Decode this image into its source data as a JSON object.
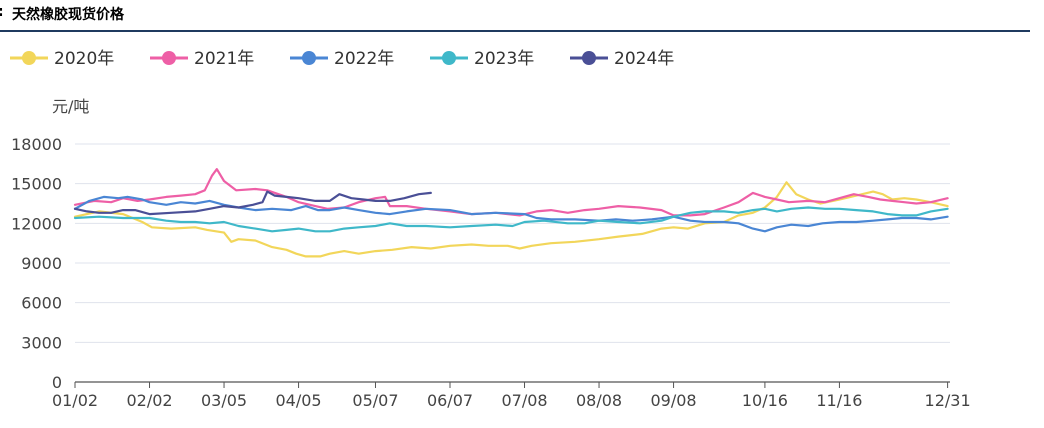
{
  "header": {
    "prefix": ":",
    "title": "天然橡胶现货价格"
  },
  "chart_data": {
    "type": "line",
    "title": "天然橡胶现货价格",
    "ylabel": "元/吨",
    "xlabel": "",
    "ylim": [
      0,
      18000
    ],
    "yticks": [
      0,
      3000,
      6000,
      9000,
      12000,
      15000,
      18000
    ],
    "x_range": [
      0,
      364
    ],
    "xticks": [
      {
        "label": "01/02",
        "day": 0
      },
      {
        "label": "02/02",
        "day": 31
      },
      {
        "label": "03/05",
        "day": 62
      },
      {
        "label": "04/05",
        "day": 93
      },
      {
        "label": "05/07",
        "day": 125
      },
      {
        "label": "06/07",
        "day": 156
      },
      {
        "label": "07/08",
        "day": 187
      },
      {
        "label": "08/08",
        "day": 218
      },
      {
        "label": "09/08",
        "day": 249
      },
      {
        "label": "10/16",
        "day": 287
      },
      {
        "label": "11/16",
        "day": 318
      },
      {
        "label": "12/31",
        "day": 363
      }
    ],
    "legend_position": "top-left",
    "grid": true,
    "series": [
      {
        "name": "2020年",
        "color": "#f2d65a",
        "points": [
          [
            0,
            12500
          ],
          [
            10,
            12900
          ],
          [
            20,
            12700
          ],
          [
            28,
            12100
          ],
          [
            32,
            11700
          ],
          [
            40,
            11600
          ],
          [
            50,
            11700
          ],
          [
            55,
            11500
          ],
          [
            62,
            11300
          ],
          [
            65,
            10600
          ],
          [
            68,
            10800
          ],
          [
            75,
            10700
          ],
          [
            82,
            10200
          ],
          [
            88,
            10000
          ],
          [
            92,
            9700
          ],
          [
            96,
            9500
          ],
          [
            102,
            9500
          ],
          [
            106,
            9700
          ],
          [
            112,
            9900
          ],
          [
            118,
            9700
          ],
          [
            125,
            9900
          ],
          [
            132,
            10000
          ],
          [
            140,
            10200
          ],
          [
            148,
            10100
          ],
          [
            156,
            10300
          ],
          [
            165,
            10400
          ],
          [
            172,
            10300
          ],
          [
            180,
            10300
          ],
          [
            185,
            10100
          ],
          [
            190,
            10300
          ],
          [
            198,
            10500
          ],
          [
            208,
            10600
          ],
          [
            218,
            10800
          ],
          [
            226,
            11000
          ],
          [
            236,
            11200
          ],
          [
            244,
            11600
          ],
          [
            249,
            11700
          ],
          [
            255,
            11600
          ],
          [
            262,
            12000
          ],
          [
            270,
            12100
          ],
          [
            276,
            12600
          ],
          [
            282,
            12800
          ],
          [
            287,
            13200
          ],
          [
            292,
            14000
          ],
          [
            296,
            15100
          ],
          [
            300,
            14200
          ],
          [
            305,
            13800
          ],
          [
            310,
            13500
          ],
          [
            318,
            13800
          ],
          [
            325,
            14100
          ],
          [
            332,
            14400
          ],
          [
            336,
            14200
          ],
          [
            340,
            13800
          ],
          [
            345,
            13900
          ],
          [
            350,
            13800
          ],
          [
            356,
            13600
          ],
          [
            363,
            13300
          ]
        ]
      },
      {
        "name": "2021年",
        "color": "#ee5fa6",
        "points": [
          [
            0,
            13400
          ],
          [
            8,
            13700
          ],
          [
            15,
            13600
          ],
          [
            20,
            13900
          ],
          [
            26,
            13700
          ],
          [
            31,
            13800
          ],
          [
            38,
            14000
          ],
          [
            44,
            14100
          ],
          [
            50,
            14200
          ],
          [
            54,
            14500
          ],
          [
            57,
            15600
          ],
          [
            59,
            16100
          ],
          [
            62,
            15200
          ],
          [
            67,
            14500
          ],
          [
            75,
            14600
          ],
          [
            80,
            14500
          ],
          [
            88,
            14000
          ],
          [
            93,
            13600
          ],
          [
            100,
            13300
          ],
          [
            105,
            13100
          ],
          [
            112,
            13200
          ],
          [
            118,
            13600
          ],
          [
            125,
            13900
          ],
          [
            129,
            14000
          ],
          [
            131,
            13300
          ],
          [
            138,
            13300
          ],
          [
            146,
            13100
          ],
          [
            156,
            12900
          ],
          [
            165,
            12700
          ],
          [
            175,
            12800
          ],
          [
            185,
            12600
          ],
          [
            192,
            12900
          ],
          [
            198,
            13000
          ],
          [
            205,
            12800
          ],
          [
            212,
            13000
          ],
          [
            218,
            13100
          ],
          [
            226,
            13300
          ],
          [
            235,
            13200
          ],
          [
            244,
            13000
          ],
          [
            249,
            12600
          ],
          [
            256,
            12600
          ],
          [
            262,
            12700
          ],
          [
            270,
            13200
          ],
          [
            276,
            13600
          ],
          [
            282,
            14300
          ],
          [
            287,
            14000
          ],
          [
            292,
            13800
          ],
          [
            297,
            13600
          ],
          [
            305,
            13700
          ],
          [
            312,
            13600
          ],
          [
            318,
            13900
          ],
          [
            324,
            14200
          ],
          [
            330,
            14000
          ],
          [
            335,
            13800
          ],
          [
            340,
            13700
          ],
          [
            345,
            13600
          ],
          [
            350,
            13500
          ],
          [
            356,
            13600
          ],
          [
            363,
            13900
          ]
        ]
      },
      {
        "name": "2022年",
        "color": "#4a86d4",
        "points": [
          [
            0,
            13100
          ],
          [
            6,
            13700
          ],
          [
            12,
            14000
          ],
          [
            18,
            13900
          ],
          [
            22,
            14000
          ],
          [
            28,
            13800
          ],
          [
            31,
            13600
          ],
          [
            38,
            13400
          ],
          [
            44,
            13600
          ],
          [
            50,
            13500
          ],
          [
            56,
            13700
          ],
          [
            62,
            13400
          ],
          [
            68,
            13200
          ],
          [
            75,
            13000
          ],
          [
            82,
            13100
          ],
          [
            90,
            13000
          ],
          [
            96,
            13300
          ],
          [
            101,
            13000
          ],
          [
            106,
            13000
          ],
          [
            112,
            13200
          ],
          [
            118,
            13000
          ],
          [
            125,
            12800
          ],
          [
            131,
            12700
          ],
          [
            138,
            12900
          ],
          [
            146,
            13100
          ],
          [
            156,
            13000
          ],
          [
            165,
            12700
          ],
          [
            175,
            12800
          ],
          [
            187,
            12700
          ],
          [
            192,
            12400
          ],
          [
            198,
            12300
          ],
          [
            208,
            12300
          ],
          [
            218,
            12200
          ],
          [
            225,
            12300
          ],
          [
            232,
            12200
          ],
          [
            240,
            12300
          ],
          [
            249,
            12500
          ],
          [
            256,
            12200
          ],
          [
            262,
            12100
          ],
          [
            270,
            12100
          ],
          [
            276,
            12000
          ],
          [
            282,
            11600
          ],
          [
            287,
            11400
          ],
          [
            292,
            11700
          ],
          [
            298,
            11900
          ],
          [
            305,
            11800
          ],
          [
            311,
            12000
          ],
          [
            318,
            12100
          ],
          [
            325,
            12100
          ],
          [
            332,
            12200
          ],
          [
            338,
            12300
          ],
          [
            344,
            12400
          ],
          [
            350,
            12400
          ],
          [
            356,
            12300
          ],
          [
            363,
            12500
          ]
        ]
      },
      {
        "name": "2023年",
        "color": "#3fb8c9",
        "points": [
          [
            0,
            12400
          ],
          [
            10,
            12500
          ],
          [
            20,
            12400
          ],
          [
            31,
            12400
          ],
          [
            38,
            12200
          ],
          [
            44,
            12100
          ],
          [
            50,
            12100
          ],
          [
            56,
            12000
          ],
          [
            62,
            12100
          ],
          [
            68,
            11800
          ],
          [
            75,
            11600
          ],
          [
            82,
            11400
          ],
          [
            88,
            11500
          ],
          [
            93,
            11600
          ],
          [
            100,
            11400
          ],
          [
            106,
            11400
          ],
          [
            112,
            11600
          ],
          [
            118,
            11700
          ],
          [
            125,
            11800
          ],
          [
            131,
            12000
          ],
          [
            138,
            11800
          ],
          [
            146,
            11800
          ],
          [
            156,
            11700
          ],
          [
            165,
            11800
          ],
          [
            175,
            11900
          ],
          [
            182,
            11800
          ],
          [
            187,
            12100
          ],
          [
            195,
            12200
          ],
          [
            205,
            12000
          ],
          [
            212,
            12000
          ],
          [
            218,
            12200
          ],
          [
            226,
            12100
          ],
          [
            235,
            12000
          ],
          [
            244,
            12200
          ],
          [
            249,
            12500
          ],
          [
            256,
            12800
          ],
          [
            262,
            12900
          ],
          [
            270,
            12900
          ],
          [
            276,
            12800
          ],
          [
            282,
            13000
          ],
          [
            287,
            13100
          ],
          [
            292,
            12900
          ],
          [
            298,
            13100
          ],
          [
            305,
            13200
          ],
          [
            312,
            13100
          ],
          [
            318,
            13100
          ],
          [
            325,
            13000
          ],
          [
            332,
            12900
          ],
          [
            338,
            12700
          ],
          [
            344,
            12600
          ],
          [
            350,
            12600
          ],
          [
            356,
            12900
          ],
          [
            363,
            13100
          ]
        ]
      },
      {
        "name": "2024年",
        "color": "#4a4f96",
        "points": [
          [
            0,
            13100
          ],
          [
            5,
            12900
          ],
          [
            10,
            12800
          ],
          [
            15,
            12800
          ],
          [
            20,
            13000
          ],
          [
            25,
            13000
          ],
          [
            31,
            12700
          ],
          [
            40,
            12800
          ],
          [
            50,
            12900
          ],
          [
            56,
            13100
          ],
          [
            62,
            13300
          ],
          [
            68,
            13200
          ],
          [
            74,
            13400
          ],
          [
            78,
            13600
          ],
          [
            80,
            14400
          ],
          [
            83,
            14100
          ],
          [
            88,
            14000
          ],
          [
            93,
            13900
          ],
          [
            100,
            13700
          ],
          [
            106,
            13700
          ],
          [
            110,
            14200
          ],
          [
            115,
            13900
          ],
          [
            120,
            13800
          ],
          [
            125,
            13700
          ],
          [
            131,
            13700
          ],
          [
            137,
            13900
          ],
          [
            143,
            14200
          ],
          [
            148,
            14300
          ]
        ]
      }
    ]
  }
}
